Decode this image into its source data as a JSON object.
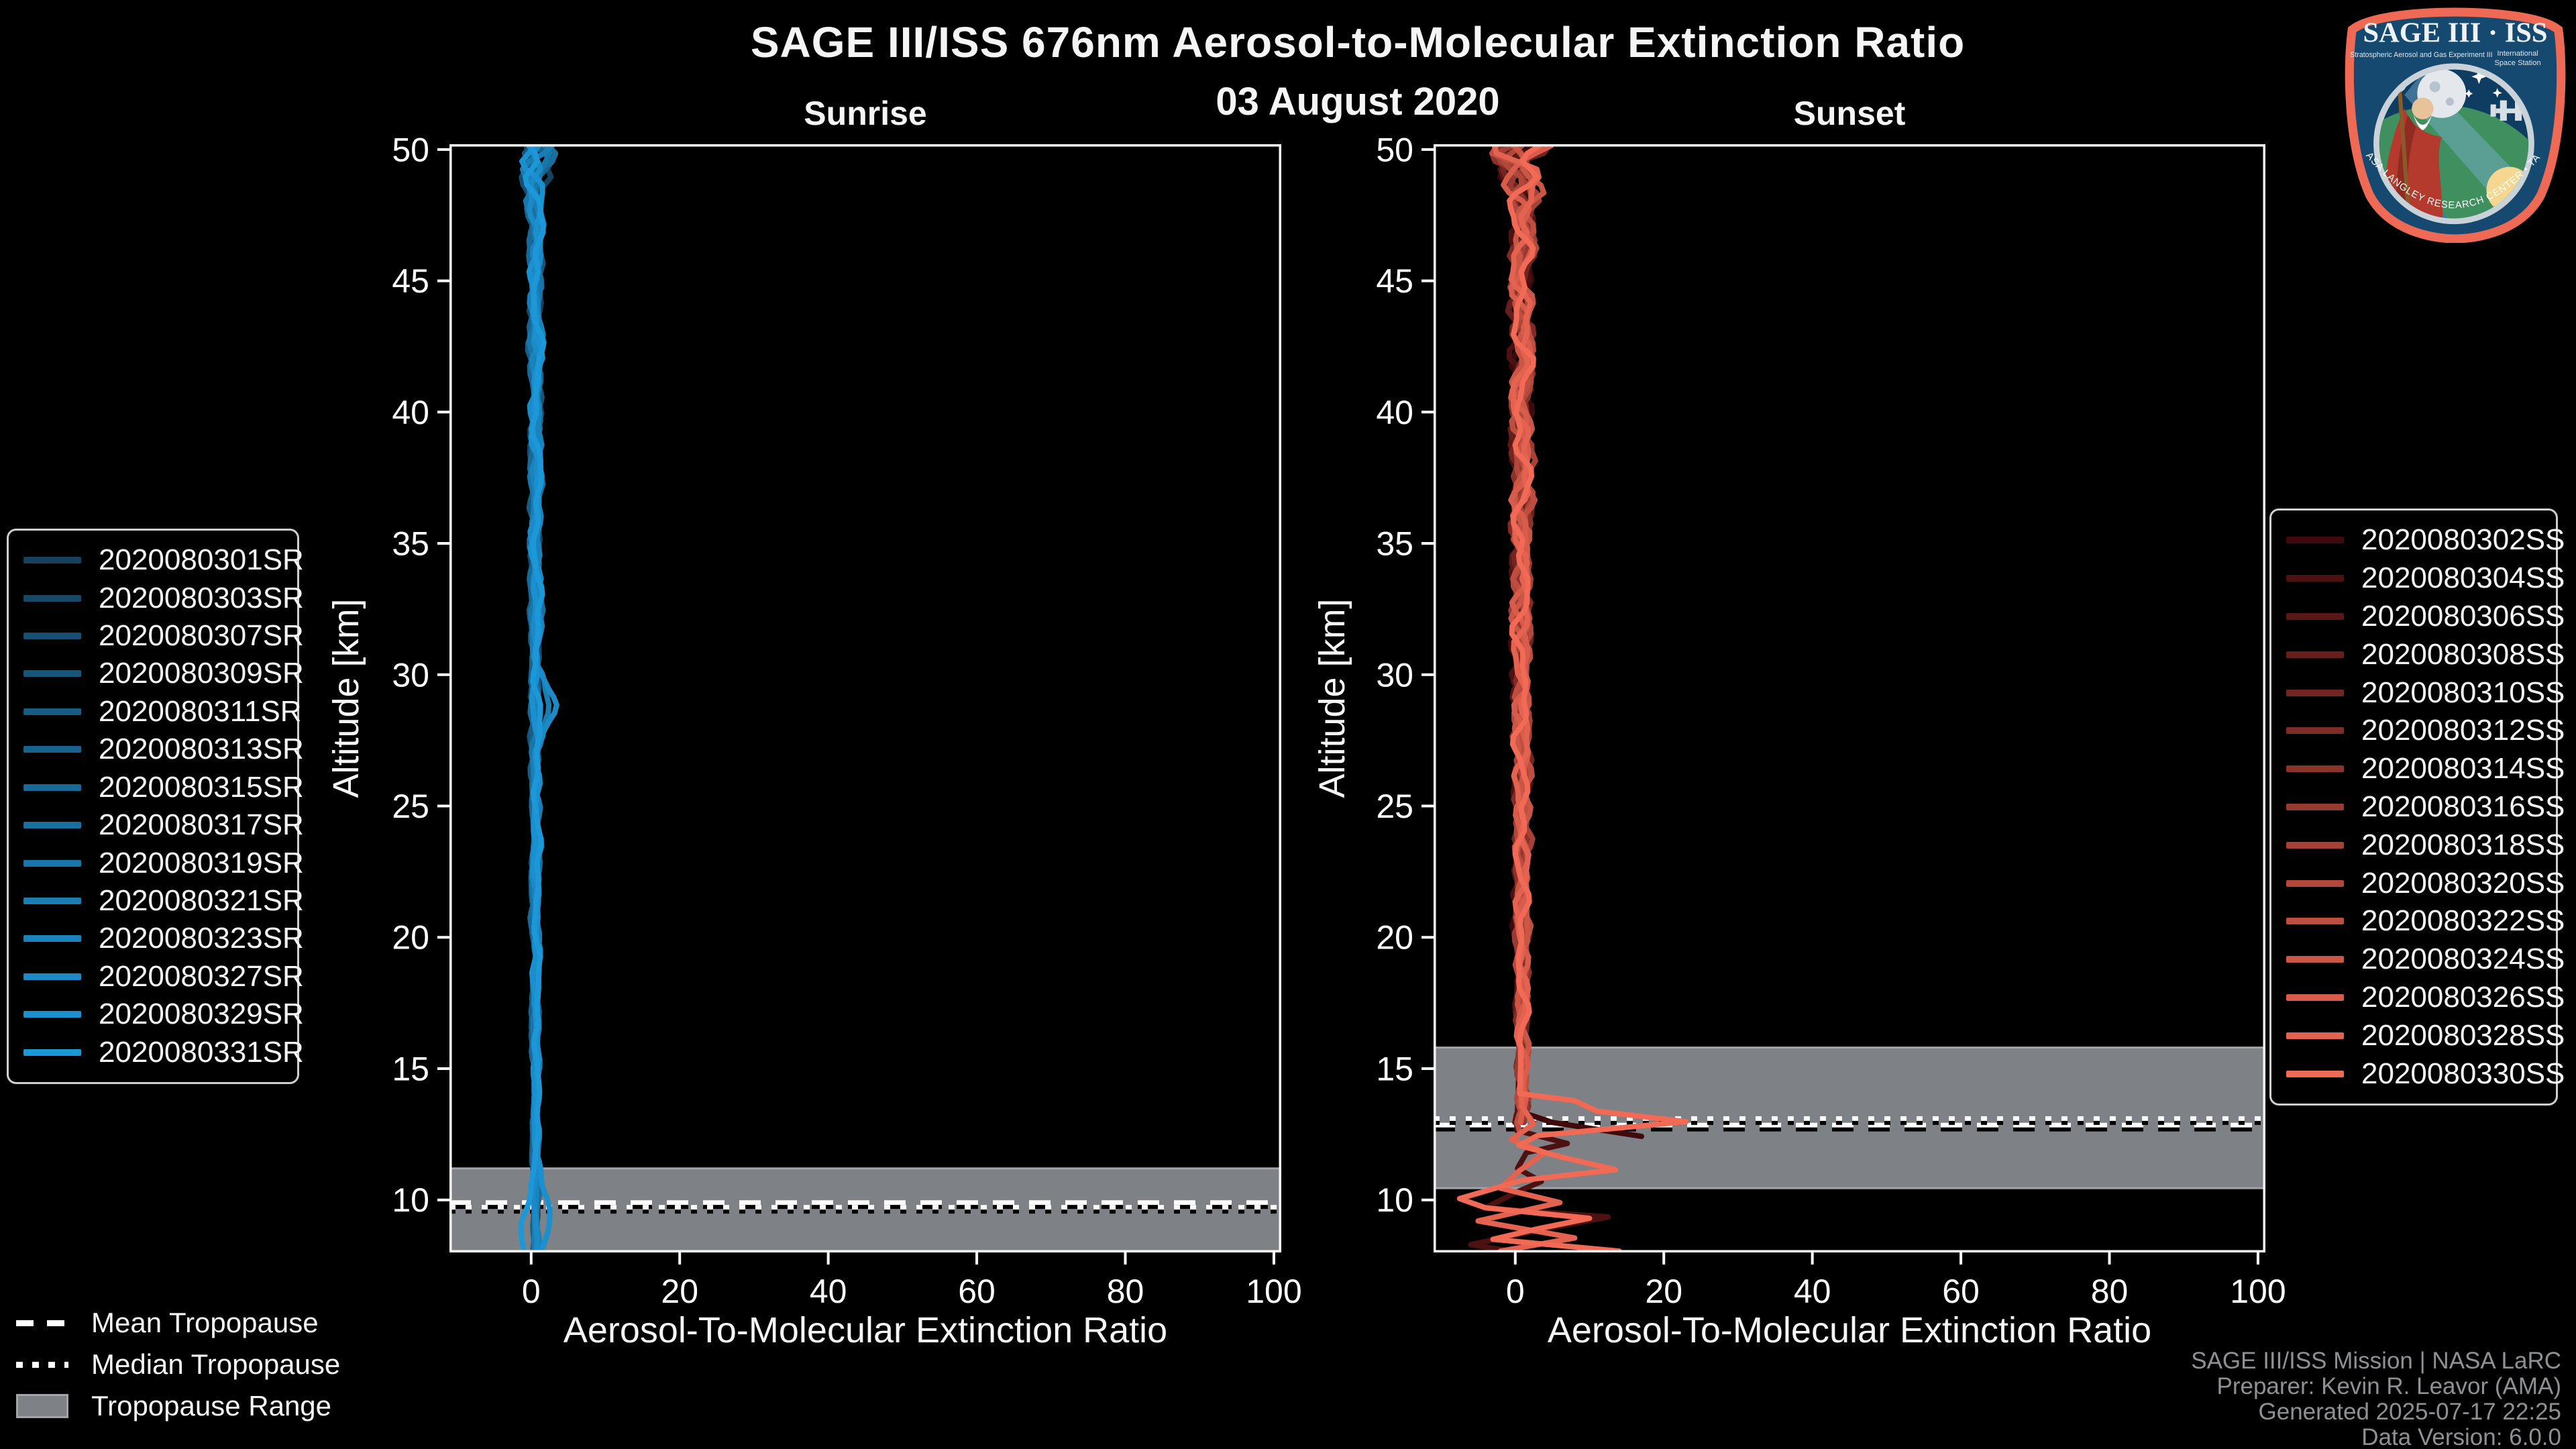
{
  "figure": {
    "title": "SAGE III/ISS 676nm Aerosol-to-Molecular Extinction Ratio",
    "date": "03 August 2020"
  },
  "colors": {
    "background": "#000000",
    "text": "#f5f5f5",
    "muted_text": "#8f9093",
    "axis": "#ffffff",
    "band_fill": "#7e8186",
    "band_edge": "#a2a5aa",
    "sunrise_accent": "#1c97d8",
    "sunset_accent": "#f06a55"
  },
  "chart_data": [
    {
      "type": "line",
      "id": "sunrise",
      "title": "Sunrise",
      "xlabel": "Aerosol-To-Molecular Extinction Ratio",
      "ylabel": "Altitude [km]",
      "xlim": [
        -11,
        101
      ],
      "ylim": [
        8,
        50.2
      ],
      "xticks": [
        0,
        20,
        40,
        60,
        80,
        100
      ],
      "yticks": [
        10,
        15,
        20,
        25,
        30,
        35,
        40,
        45,
        50
      ],
      "grid": false,
      "legend_position": "outside-left",
      "tropopause": {
        "mean_km": 9.9,
        "median_km": 9.72,
        "range_km": [
          8.0,
          11.2
        ]
      },
      "profile_center_ratio": 0.6,
      "series": [
        {
          "id": "2020080301SR",
          "color": "#16425f",
          "bottom_km": 8.05
        },
        {
          "id": "2020080303SR",
          "color": "#164968",
          "bottom_km": 8.05
        },
        {
          "id": "2020080307SR",
          "color": "#174f72",
          "bottom_km": 8.05
        },
        {
          "id": "2020080309SR",
          "color": "#17567b",
          "bottom_km": 8.05
        },
        {
          "id": "2020080311SR",
          "color": "#185c84",
          "bottom_km": 8.05
        },
        {
          "id": "2020080313SR",
          "color": "#18638e",
          "bottom_km": 8.05
        },
        {
          "id": "2020080315SR",
          "color": "#186997",
          "bottom_km": 8.05
        },
        {
          "id": "2020080317SR",
          "color": "#1970a0",
          "bottom_km": 8.05
        },
        {
          "id": "2020080319SR",
          "color": "#1976aa",
          "bottom_km": 8.05
        },
        {
          "id": "2020080321SR",
          "color": "#1a7db3",
          "bottom_km": 8.05,
          "bumps": [
            {
              "alt": 28.7,
              "amp": 1.5,
              "width": 0.9
            }
          ]
        },
        {
          "id": "2020080323SR",
          "color": "#1a83bc",
          "bottom_km": 8.05
        },
        {
          "id": "2020080327SR",
          "color": "#1b8ac6",
          "bottom_km": 8.05,
          "bumps": [
            {
              "alt": 28.7,
              "amp": 2.2,
              "width": 0.9
            }
          ]
        },
        {
          "id": "2020080329SR",
          "color": "#1b90cf",
          "bottom_km": 8.05,
          "bumps": [
            {
              "alt": 9.2,
              "amp": 1.8,
              "width": 1.1
            }
          ]
        },
        {
          "id": "2020080331SR",
          "color": "#1c97d8",
          "bottom_km": 8.05,
          "bumps": [
            {
              "alt": 8.8,
              "amp": -2.3,
              "width": 1.1
            }
          ]
        }
      ]
    },
    {
      "type": "line",
      "id": "sunset",
      "title": "Sunset",
      "xlabel": "Aerosol-To-Molecular Extinction Ratio",
      "ylabel": "Altitude [km]",
      "xlim": [
        -11,
        101
      ],
      "ylim": [
        8,
        50.2
      ],
      "xticks": [
        0,
        20,
        40,
        60,
        80,
        100
      ],
      "yticks": [
        10,
        15,
        20,
        25,
        30,
        35,
        40,
        45,
        50
      ],
      "grid": false,
      "legend_position": "outside-right",
      "tropopause": {
        "mean_km": 12.85,
        "median_km": 13.1,
        "range_km": [
          10.45,
          15.8
        ]
      },
      "profile_center_ratio": 0.9,
      "series": [
        {
          "id": "2020080302SS",
          "color": "#400a0c",
          "lower_path": [
            [
              0.6,
              15.8
            ],
            [
              0.8,
              13.35
            ],
            [
              5,
              12.95
            ],
            [
              17,
              12.42
            ]
          ]
        },
        {
          "id": "2020080304SS",
          "color": "#4d1111",
          "lower_path": [
            [
              0.6,
              15.8
            ],
            [
              0.2,
              12.65
            ],
            [
              7,
              12.15
            ],
            [
              1.5,
              11.8
            ],
            [
              0.3,
              11.2
            ],
            [
              3.5,
              10.7
            ],
            [
              0.2,
              10.3
            ],
            [
              -4,
              9.7
            ],
            [
              12.5,
              9.35
            ],
            [
              4,
              8.9
            ],
            [
              -6,
              8.3
            ],
            [
              0.5,
              8.0
            ]
          ]
        },
        {
          "id": "2020080306SS",
          "color": "#591816",
          "bottom_km": 12.9
        },
        {
          "id": "2020080308SS",
          "color": "#661f1c",
          "bottom_km": 13.3
        },
        {
          "id": "2020080310SS",
          "color": "#722521",
          "bottom_km": 12.7
        },
        {
          "id": "2020080312SS",
          "color": "#7f2c26",
          "bottom_km": 13.5
        },
        {
          "id": "2020080314SS",
          "color": "#8b332b",
          "bottom_km": 13.0
        },
        {
          "id": "2020080316SS",
          "color": "#983a31",
          "bottom_km": 12.8
        },
        {
          "id": "2020080318SS",
          "color": "#a54136",
          "bottom_km": 13.6
        },
        {
          "id": "2020080320SS",
          "color": "#b1483b",
          "bottom_km": 13.1
        },
        {
          "id": "2020080322SS",
          "color": "#be4f40",
          "bottom_km": 12.6
        },
        {
          "id": "2020080324SS",
          "color": "#ca5646",
          "bottom_km": 13.4
        },
        {
          "id": "2020080326SS",
          "color": "#d75c4b",
          "bottom_km": 12.9
        },
        {
          "id": "2020080328SS",
          "color": "#e36350",
          "lower_path": [
            [
              0.7,
              15.8
            ],
            [
              0.9,
              13.55
            ],
            [
              2.5,
              12.9
            ],
            [
              -0.5,
              12.3
            ],
            [
              4,
              11.8
            ],
            [
              0.5,
              11.1
            ],
            [
              -2,
              10.45
            ],
            [
              6,
              9.9
            ],
            [
              -5,
              9.2
            ],
            [
              8,
              8.55
            ],
            [
              -2,
              8.05
            ]
          ]
        },
        {
          "id": "2020080330SS",
          "color": "#f06a55",
          "lower_path": [
            [
              0.8,
              15.8
            ],
            [
              0.6,
              14.05
            ],
            [
              8,
              13.78
            ],
            [
              11,
              13.38
            ],
            [
              23,
              12.98
            ],
            [
              3,
              12.45
            ],
            [
              0.5,
              12.08
            ],
            [
              6,
              11.65
            ],
            [
              13.5,
              11.15
            ],
            [
              1,
              10.75
            ],
            [
              -7.5,
              10.05
            ],
            [
              -4,
              9.7
            ],
            [
              10,
              9.3
            ],
            [
              3,
              8.9
            ],
            [
              -3,
              8.5
            ],
            [
              14,
              8.05
            ]
          ]
        }
      ]
    }
  ],
  "tropopause_legend": {
    "items": [
      {
        "label": "Mean Tropopause",
        "swatch": "dashed"
      },
      {
        "label": "Median Tropopause",
        "swatch": "dotted"
      },
      {
        "label": "Tropopause Range",
        "swatch": "patch"
      }
    ]
  },
  "attribution": {
    "line1": "SAGE III/ISS Mission | NASA LaRC",
    "line2": "Preparer: Kevin R. Leavor (AMA)",
    "line3": "Generated 2025-07-17 22:25",
    "line4": "Data Version: 6.0.0"
  },
  "logo": {
    "title": "SAGE III · ISS",
    "subtitle_left": "Stratospheric Aerosol and Gas Experiment III",
    "subtitle_right_1": "International",
    "subtitle_right_2": "Space Station",
    "footer": "BALL • NASA LANGLEY RESEARCH CENTER • TAS-I • ESA"
  }
}
